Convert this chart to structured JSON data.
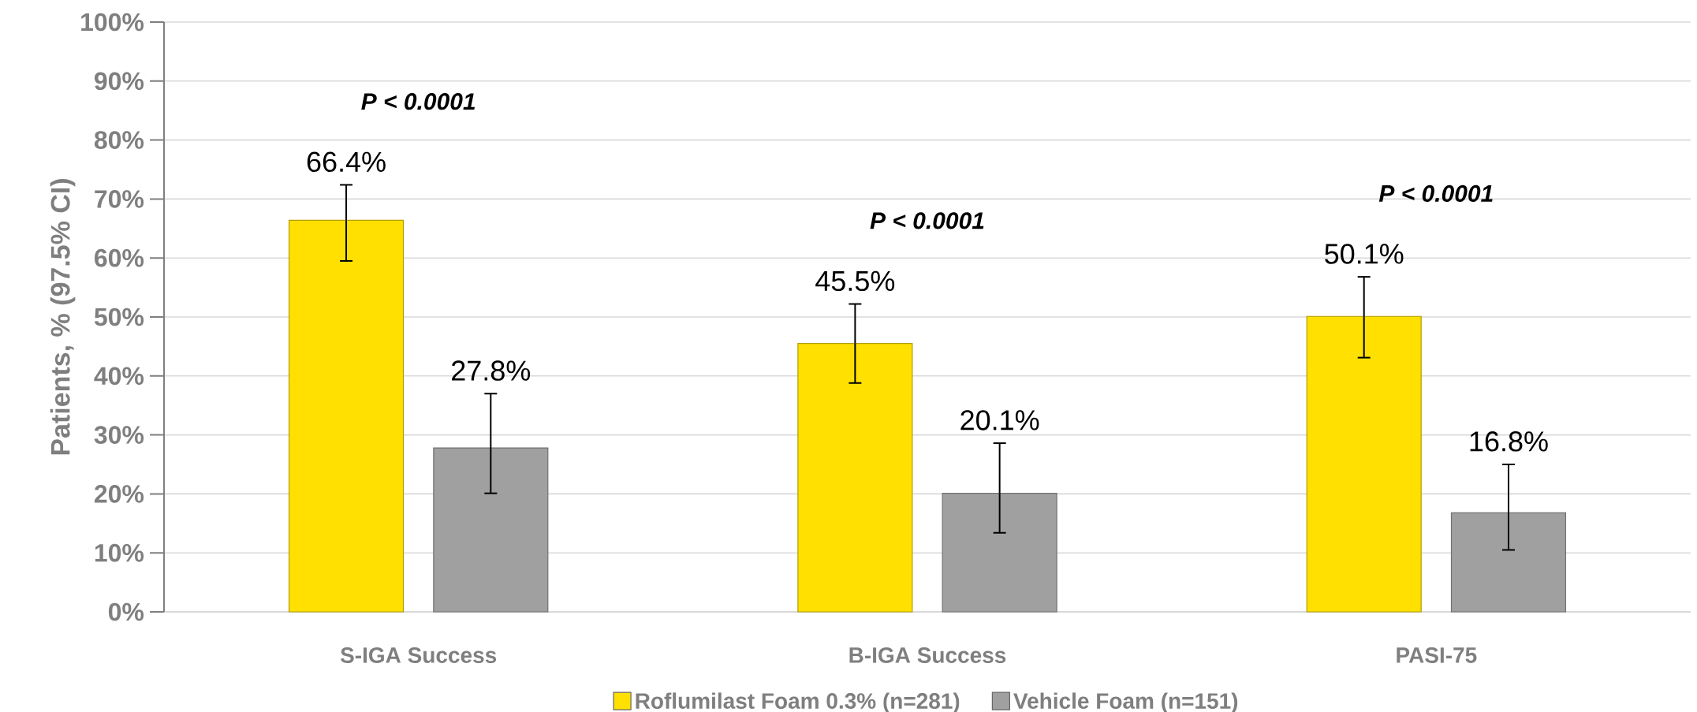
{
  "chart_data": {
    "type": "bar",
    "ylabel": "Patients, % (97.5% CI)",
    "categories": [
      "S-IGA Success",
      "B-IGA Success",
      "PASI-75"
    ],
    "series": [
      {
        "name": "Roflumilast Foam 0.3% (n=281)",
        "color": "#ffe000",
        "values": [
          66.4,
          45.5,
          50.1
        ],
        "errors": [
          [
            59.5,
            72.4
          ],
          [
            38.8,
            52.2
          ],
          [
            43.1,
            56.8
          ]
        ],
        "value_labels": [
          "66.4%",
          "45.5%",
          "50.1%"
        ]
      },
      {
        "name": "Vehicle Foam (n=151)",
        "color": "#a0a0a0",
        "values": [
          27.8,
          20.1,
          16.8
        ],
        "errors": [
          [
            20.1,
            37.0
          ],
          [
            13.4,
            28.6
          ],
          [
            10.5,
            25.0
          ]
        ],
        "value_labels": [
          "27.8%",
          "20.1%",
          "16.8%"
        ]
      }
    ],
    "ylim": [
      0,
      100
    ],
    "yticks": [
      {
        "value": 0,
        "label": "0%"
      },
      {
        "value": 10,
        "label": "10%"
      },
      {
        "value": 20,
        "label": "20%"
      },
      {
        "value": 30,
        "label": "30%"
      },
      {
        "value": 40,
        "label": "40%"
      },
      {
        "value": 50,
        "label": "50%"
      },
      {
        "value": 60,
        "label": "60%"
      },
      {
        "value": 70,
        "label": "70%"
      },
      {
        "value": 80,
        "label": "80%"
      },
      {
        "value": 90,
        "label": "90%"
      },
      {
        "value": 100,
        "label": "100%"
      }
    ],
    "grid": "y",
    "legend": "bottom",
    "annotations": [
      "P < 0.0001",
      "P < 0.0001",
      "P < 0.0001"
    ]
  }
}
